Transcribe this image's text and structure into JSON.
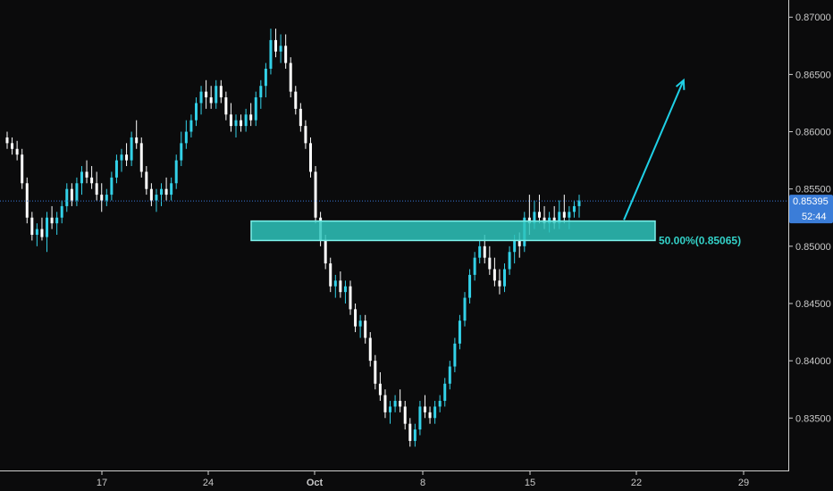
{
  "colors": {
    "background": "#0b0b0c",
    "bull": "#33d1e8",
    "bear": "#ffffff",
    "axis_text": "#c9c9c9",
    "zone_fill": "#2ec4bc",
    "zone_border": "#7ef0ea",
    "arrow": "#1fd0e6",
    "price_line": "#3a78d8",
    "price_badge": "#3b7dd8"
  },
  "axis": {
    "y_ticks": [
      "0.87000",
      "0.86500",
      "0.86000",
      "0.85500",
      "0.85000",
      "0.84500",
      "0.84000",
      "0.83500"
    ],
    "x_ticks": [
      "17",
      "24",
      "Oct",
      "8",
      "15",
      "22",
      "29"
    ]
  },
  "price_badge": {
    "price": "0.85395",
    "timer": "52:44"
  },
  "fib_label": "50.00%(0.85065)",
  "chart_data": {
    "type": "candlestick",
    "title": "",
    "ylim": [
      0.8305,
      0.8715
    ],
    "current_price": 0.85395,
    "zone": {
      "top": 0.8522,
      "bottom": 0.8505,
      "label": "50.00%(0.85065)"
    },
    "arrow": {
      "from_index": 124,
      "from_price": 0.8523,
      "to_index": 136,
      "to_price": 0.8645
    },
    "candles": [
      [
        0.8595,
        0.86,
        0.8585,
        0.859
      ],
      [
        0.859,
        0.8595,
        0.858,
        0.8585
      ],
      [
        0.8585,
        0.8592,
        0.8575,
        0.858
      ],
      [
        0.858,
        0.8585,
        0.855,
        0.8555
      ],
      [
        0.8555,
        0.856,
        0.852,
        0.8525
      ],
      [
        0.8525,
        0.853,
        0.8505,
        0.851
      ],
      [
        0.851,
        0.852,
        0.85,
        0.8515
      ],
      [
        0.8515,
        0.8525,
        0.8505,
        0.8508
      ],
      [
        0.8508,
        0.853,
        0.8495,
        0.8525
      ],
      [
        0.8525,
        0.8535,
        0.8515,
        0.852
      ],
      [
        0.852,
        0.853,
        0.851,
        0.8525
      ],
      [
        0.8525,
        0.854,
        0.852,
        0.8535
      ],
      [
        0.8535,
        0.8555,
        0.853,
        0.855
      ],
      [
        0.855,
        0.8555,
        0.8535,
        0.854
      ],
      [
        0.854,
        0.856,
        0.8535,
        0.8555
      ],
      [
        0.8555,
        0.857,
        0.8545,
        0.8565
      ],
      [
        0.8565,
        0.8575,
        0.8555,
        0.856
      ],
      [
        0.856,
        0.857,
        0.855,
        0.8555
      ],
      [
        0.8555,
        0.8565,
        0.854,
        0.8545
      ],
      [
        0.8545,
        0.8555,
        0.853,
        0.854
      ],
      [
        0.854,
        0.855,
        0.8535,
        0.8545
      ],
      [
        0.8545,
        0.8565,
        0.854,
        0.856
      ],
      [
        0.856,
        0.858,
        0.8555,
        0.8575
      ],
      [
        0.8575,
        0.8585,
        0.8565,
        0.858
      ],
      [
        0.858,
        0.859,
        0.857,
        0.8575
      ],
      [
        0.8575,
        0.86,
        0.857,
        0.8595
      ],
      [
        0.8595,
        0.861,
        0.8585,
        0.859
      ],
      [
        0.859,
        0.8595,
        0.856,
        0.8565
      ],
      [
        0.8565,
        0.857,
        0.8545,
        0.855
      ],
      [
        0.855,
        0.8555,
        0.8535,
        0.854
      ],
      [
        0.854,
        0.855,
        0.853,
        0.8545
      ],
      [
        0.8545,
        0.8555,
        0.8535,
        0.855
      ],
      [
        0.855,
        0.856,
        0.854,
        0.8545
      ],
      [
        0.8545,
        0.856,
        0.854,
        0.8555
      ],
      [
        0.8555,
        0.858,
        0.855,
        0.8575
      ],
      [
        0.8575,
        0.86,
        0.857,
        0.859
      ],
      [
        0.859,
        0.861,
        0.8585,
        0.86
      ],
      [
        0.86,
        0.8615,
        0.8595,
        0.861
      ],
      [
        0.861,
        0.863,
        0.8605,
        0.8625
      ],
      [
        0.8625,
        0.864,
        0.8615,
        0.8635
      ],
      [
        0.8635,
        0.8645,
        0.862,
        0.863
      ],
      [
        0.863,
        0.864,
        0.862,
        0.8625
      ],
      [
        0.8625,
        0.8645,
        0.862,
        0.864
      ],
      [
        0.864,
        0.8645,
        0.8625,
        0.863
      ],
      [
        0.863,
        0.8635,
        0.861,
        0.8615
      ],
      [
        0.8615,
        0.8625,
        0.86,
        0.8605
      ],
      [
        0.8605,
        0.8615,
        0.8595,
        0.861
      ],
      [
        0.861,
        0.8615,
        0.86,
        0.8605
      ],
      [
        0.8605,
        0.862,
        0.86,
        0.8615
      ],
      [
        0.8615,
        0.8625,
        0.8605,
        0.861
      ],
      [
        0.861,
        0.8635,
        0.8605,
        0.863
      ],
      [
        0.863,
        0.8645,
        0.862,
        0.864
      ],
      [
        0.864,
        0.866,
        0.863,
        0.8655
      ],
      [
        0.8655,
        0.869,
        0.865,
        0.868
      ],
      [
        0.868,
        0.869,
        0.8665,
        0.867
      ],
      [
        0.867,
        0.8685,
        0.866,
        0.8675
      ],
      [
        0.8675,
        0.8685,
        0.8655,
        0.866
      ],
      [
        0.866,
        0.8665,
        0.863,
        0.8635
      ],
      [
        0.8635,
        0.864,
        0.8615,
        0.862
      ],
      [
        0.862,
        0.8625,
        0.86,
        0.8605
      ],
      [
        0.8605,
        0.861,
        0.8585,
        0.859
      ],
      [
        0.859,
        0.8595,
        0.856,
        0.8565
      ],
      [
        0.8565,
        0.857,
        0.852,
        0.8525
      ],
      [
        0.8525,
        0.853,
        0.85,
        0.8505
      ],
      [
        0.8505,
        0.851,
        0.848,
        0.8485
      ],
      [
        0.8485,
        0.849,
        0.846,
        0.8465
      ],
      [
        0.8465,
        0.8475,
        0.8455,
        0.847
      ],
      [
        0.847,
        0.8478,
        0.8455,
        0.846
      ],
      [
        0.846,
        0.847,
        0.845,
        0.8465
      ],
      [
        0.8465,
        0.847,
        0.844,
        0.8445
      ],
      [
        0.8445,
        0.845,
        0.8425,
        0.843
      ],
      [
        0.843,
        0.844,
        0.842,
        0.8435
      ],
      [
        0.8435,
        0.844,
        0.8415,
        0.842
      ],
      [
        0.842,
        0.8425,
        0.8395,
        0.84
      ],
      [
        0.84,
        0.8405,
        0.8375,
        0.838
      ],
      [
        0.838,
        0.839,
        0.8365,
        0.837
      ],
      [
        0.837,
        0.8375,
        0.835,
        0.8355
      ],
      [
        0.8355,
        0.8365,
        0.8345,
        0.836
      ],
      [
        0.836,
        0.837,
        0.8355,
        0.8365
      ],
      [
        0.8365,
        0.8375,
        0.8355,
        0.836
      ],
      [
        0.836,
        0.8365,
        0.834,
        0.8345
      ],
      [
        0.8345,
        0.835,
        0.8325,
        0.833
      ],
      [
        0.833,
        0.8345,
        0.8325,
        0.834
      ],
      [
        0.834,
        0.8365,
        0.8335,
        0.836
      ],
      [
        0.836,
        0.837,
        0.835,
        0.8355
      ],
      [
        0.8355,
        0.836,
        0.8345,
        0.835
      ],
      [
        0.835,
        0.8365,
        0.8345,
        0.836
      ],
      [
        0.836,
        0.837,
        0.8355,
        0.8365
      ],
      [
        0.8365,
        0.8385,
        0.836,
        0.838
      ],
      [
        0.838,
        0.84,
        0.8375,
        0.8395
      ],
      [
        0.8395,
        0.842,
        0.839,
        0.8415
      ],
      [
        0.8415,
        0.844,
        0.841,
        0.8435
      ],
      [
        0.8435,
        0.846,
        0.843,
        0.8455
      ],
      [
        0.8455,
        0.848,
        0.845,
        0.8475
      ],
      [
        0.8475,
        0.8495,
        0.847,
        0.849
      ],
      [
        0.849,
        0.8505,
        0.8485,
        0.85
      ],
      [
        0.85,
        0.851,
        0.8485,
        0.849
      ],
      [
        0.849,
        0.85,
        0.8475,
        0.848
      ],
      [
        0.848,
        0.849,
        0.8465,
        0.847
      ],
      [
        0.847,
        0.848,
        0.8458,
        0.8465
      ],
      [
        0.8465,
        0.8485,
        0.846,
        0.848
      ],
      [
        0.848,
        0.85,
        0.8475,
        0.8495
      ],
      [
        0.8495,
        0.851,
        0.8485,
        0.8505
      ],
      [
        0.8505,
        0.8512,
        0.849,
        0.85
      ],
      [
        0.85,
        0.853,
        0.8495,
        0.8525
      ],
      [
        0.8525,
        0.8545,
        0.851,
        0.852
      ],
      [
        0.852,
        0.854,
        0.8515,
        0.853
      ],
      [
        0.853,
        0.8545,
        0.852,
        0.8525
      ],
      [
        0.8525,
        0.8535,
        0.8515,
        0.852
      ],
      [
        0.852,
        0.853,
        0.8512,
        0.8525
      ],
      [
        0.8525,
        0.8535,
        0.8515,
        0.852
      ],
      [
        0.852,
        0.854,
        0.8515,
        0.853
      ],
      [
        0.853,
        0.8545,
        0.852,
        0.8525
      ],
      [
        0.8525,
        0.8535,
        0.8515,
        0.853
      ],
      [
        0.853,
        0.854,
        0.8525,
        0.8535
      ],
      [
        0.8535,
        0.8545,
        0.8525,
        0.854
      ]
    ]
  }
}
